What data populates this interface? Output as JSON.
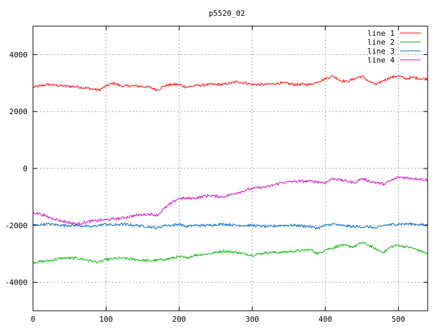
{
  "chart_data": {
    "type": "line",
    "title": "p5520_02",
    "xlabel": "",
    "ylabel": "",
    "xlim": [
      0,
      540
    ],
    "ylim": [
      -5000,
      5000
    ],
    "xticks": [
      0,
      100,
      200,
      300,
      400,
      500
    ],
    "yticks": [
      -4000,
      -2000,
      0,
      2000,
      4000
    ],
    "grid": true,
    "legend_position": "top-right",
    "series": [
      {
        "name": "line 1",
        "color": "#ff0000",
        "x": [
          0,
          20,
          40,
          60,
          80,
          90,
          100,
          110,
          120,
          140,
          160,
          170,
          180,
          190,
          200,
          210,
          220,
          240,
          260,
          280,
          300,
          320,
          340,
          360,
          380,
          390,
          400,
          410,
          420,
          430,
          440,
          450,
          460,
          470,
          480,
          490,
          500,
          510,
          520,
          530,
          540
        ],
        "y": [
          2850,
          2950,
          2900,
          2870,
          2800,
          2750,
          2900,
          3000,
          2900,
          2900,
          2850,
          2750,
          2900,
          2950,
          2950,
          2850,
          2900,
          2950,
          2950,
          3050,
          2950,
          2950,
          3000,
          2950,
          2950,
          3050,
          3150,
          3250,
          3100,
          3050,
          3150,
          3250,
          3050,
          2950,
          3100,
          3200,
          3250,
          3150,
          3200,
          3150,
          3150
        ]
      },
      {
        "name": "line 2",
        "color": "#00b000",
        "x": [
          0,
          20,
          40,
          60,
          80,
          90,
          100,
          120,
          140,
          160,
          180,
          200,
          210,
          220,
          240,
          260,
          280,
          300,
          320,
          340,
          360,
          380,
          390,
          400,
          410,
          420,
          440,
          450,
          460,
          470,
          480,
          490,
          500,
          520,
          540
        ],
        "y": [
          -3300,
          -3250,
          -3150,
          -3150,
          -3250,
          -3300,
          -3200,
          -3150,
          -3200,
          -3250,
          -3200,
          -3100,
          -3150,
          -3050,
          -3000,
          -2900,
          -2950,
          -3050,
          -2950,
          -2950,
          -2900,
          -2850,
          -3000,
          -2850,
          -2800,
          -2700,
          -2750,
          -2600,
          -2700,
          -2850,
          -2950,
          -2750,
          -2700,
          -2800,
          -3000
        ]
      },
      {
        "name": "line 3",
        "color": "#0066cc",
        "x": [
          0,
          20,
          40,
          60,
          80,
          100,
          110,
          120,
          140,
          160,
          170,
          180,
          190,
          200,
          210,
          220,
          240,
          260,
          280,
          300,
          320,
          340,
          360,
          380,
          390,
          400,
          410,
          420,
          440,
          460,
          470,
          480,
          500,
          520,
          540
        ],
        "y": [
          -2000,
          -1950,
          -2000,
          -2000,
          -2050,
          -1950,
          -2000,
          -1950,
          -2000,
          -2050,
          -2100,
          -2000,
          -2000,
          -1950,
          -2050,
          -2000,
          -2000,
          -1950,
          -2000,
          -2000,
          -2050,
          -2000,
          -2000,
          -2050,
          -2100,
          -2000,
          -1950,
          -2000,
          -2050,
          -2050,
          -2100,
          -2000,
          -1950,
          -1950,
          -2000
        ]
      },
      {
        "name": "line 4",
        "color": "#cc00cc",
        "x": [
          0,
          10,
          20,
          40,
          60,
          80,
          100,
          120,
          140,
          160,
          170,
          180,
          190,
          200,
          220,
          240,
          260,
          280,
          300,
          320,
          340,
          360,
          380,
          400,
          410,
          420,
          440,
          450,
          460,
          480,
          500,
          520,
          540
        ],
        "y": [
          -1550,
          -1600,
          -1700,
          -1850,
          -1950,
          -1850,
          -1800,
          -1750,
          -1650,
          -1600,
          -1650,
          -1400,
          -1200,
          -1050,
          -1050,
          -950,
          -1000,
          -850,
          -700,
          -650,
          -500,
          -450,
          -450,
          -500,
          -350,
          -400,
          -500,
          -350,
          -450,
          -550,
          -300,
          -350,
          -400
        ]
      }
    ]
  }
}
